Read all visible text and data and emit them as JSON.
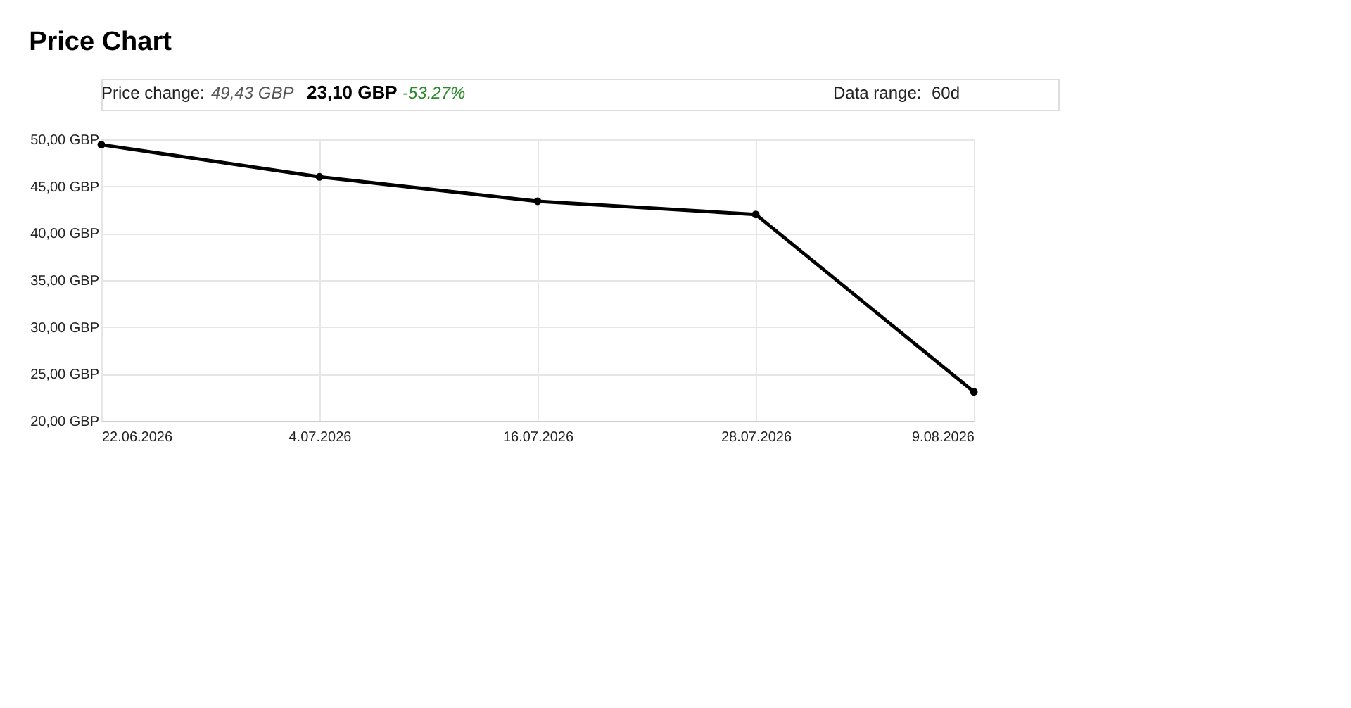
{
  "chart_data": {
    "type": "line",
    "title": "Price Chart",
    "annotations": [
      "Price change:",
      "49,43 GBP",
      "23,10 GBP",
      "-53.27%",
      "Data range:",
      "60d"
    ],
    "categories": [
      "22.06.2026",
      "4.07.2026",
      "16.07.2026",
      "28.07.2026",
      "9.08.2026"
    ],
    "series": [
      {
        "color": "#000000",
        "values": [
          49.43,
          46.0,
          43.4,
          42.0,
          23.1
        ]
      }
    ],
    "ylim": [
      20,
      50
    ],
    "yticks": [
      {
        "value": 20,
        "label": "20,00 GBP"
      },
      {
        "value": 25,
        "label": "25,00 GBP"
      },
      {
        "value": 30,
        "label": "30,00 GBP"
      },
      {
        "value": 35,
        "label": "35,00 GBP"
      },
      {
        "value": 40,
        "label": "40,00 GBP"
      },
      {
        "value": 45,
        "label": "45,00 GBP"
      },
      {
        "value": 50,
        "label": "50,00 GBP"
      }
    ],
    "grid": true,
    "marker": "circle",
    "line_style": "solid"
  }
}
